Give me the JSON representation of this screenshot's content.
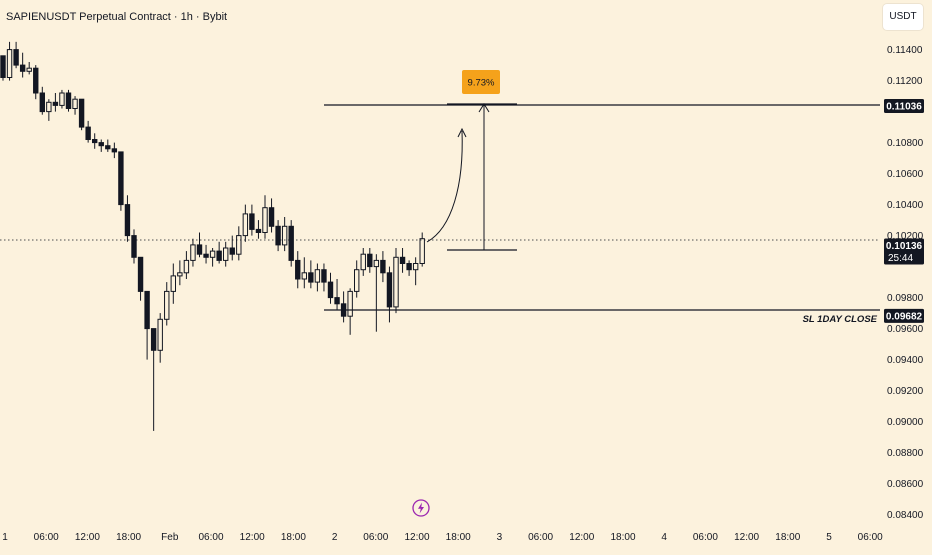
{
  "header": {
    "title": "SAPIENUSDT Perpetual Contract · 1h · Bybit",
    "currency": "USDT"
  },
  "colors": {
    "background": "#fcf2dd",
    "candle": "#131722",
    "percent_badge": "#f5a21b",
    "price_tag": "#131722",
    "text": "#131722"
  },
  "overlay": {
    "bolt_icon": "lightning-icon",
    "percent_label": "9.73%",
    "sl_label": "SL 1DAY CLOSE",
    "countdown": "25:44"
  },
  "chart_data": {
    "type": "candlestick",
    "title": "",
    "ylim": [
      0.0832,
      0.1152
    ],
    "yticks": [
      {
        "value": 0.114,
        "label": "0.11400"
      },
      {
        "value": 0.112,
        "label": "0.11200"
      },
      {
        "value": 0.108,
        "label": "0.10800"
      },
      {
        "value": 0.106,
        "label": "0.10600"
      },
      {
        "value": 0.104,
        "label": "0.10400"
      },
      {
        "value": 0.102,
        "label": "0.10200"
      },
      {
        "value": 0.098,
        "label": "0.09800"
      },
      {
        "value": 0.096,
        "label": "0.09600"
      },
      {
        "value": 0.094,
        "label": "0.09400"
      },
      {
        "value": 0.092,
        "label": "0.09200"
      },
      {
        "value": 0.09,
        "label": "0.09000"
      },
      {
        "value": 0.088,
        "label": "0.08800"
      },
      {
        "value": 0.086,
        "label": "0.08600"
      },
      {
        "value": 0.084,
        "label": "0.08400"
      }
    ],
    "price_tags": [
      {
        "value": 0.11036,
        "label": "0.11036",
        "role": "target"
      },
      {
        "value": 0.10136,
        "label": "0.10136",
        "role": "current"
      },
      {
        "value": 0.09682,
        "label": "0.09682",
        "role": "stop"
      }
    ],
    "xticks": [
      "1",
      "06:00",
      "12:00",
      "18:00",
      "Feb",
      "06:00",
      "12:00",
      "18:00",
      "2",
      "06:00",
      "12:00",
      "18:00",
      "3",
      "06:00",
      "12:00",
      "18:00",
      "4",
      "06:00",
      "12:00",
      "18:00",
      "5",
      "06:00"
    ],
    "candles": [
      [
        0.1136,
        0.1136,
        0.112,
        0.1122
      ],
      [
        0.1122,
        0.1145,
        0.112,
        0.114
      ],
      [
        0.114,
        0.1145,
        0.1128,
        0.113
      ],
      [
        0.113,
        0.1138,
        0.1122,
        0.1126
      ],
      [
        0.1126,
        0.1132,
        0.1124,
        0.1128
      ],
      [
        0.1128,
        0.113,
        0.1108,
        0.1112
      ],
      [
        0.1112,
        0.1116,
        0.1098,
        0.11
      ],
      [
        0.11,
        0.1108,
        0.1094,
        0.1106
      ],
      [
        0.1106,
        0.1112,
        0.11,
        0.1104
      ],
      [
        0.1104,
        0.1114,
        0.1102,
        0.1112
      ],
      [
        0.1112,
        0.1114,
        0.11,
        0.1102
      ],
      [
        0.1102,
        0.111,
        0.1098,
        0.1108
      ],
      [
        0.1108,
        0.1108,
        0.1088,
        0.109
      ],
      [
        0.109,
        0.1094,
        0.108,
        0.1082
      ],
      [
        0.1082,
        0.1086,
        0.1076,
        0.108
      ],
      [
        0.108,
        0.1082,
        0.1074,
        0.1078
      ],
      [
        0.1078,
        0.1082,
        0.1074,
        0.1076
      ],
      [
        0.1076,
        0.108,
        0.107,
        0.1074
      ],
      [
        0.1074,
        0.1074,
        0.1036,
        0.104
      ],
      [
        0.104,
        0.1046,
        0.1016,
        0.102
      ],
      [
        0.102,
        0.1024,
        0.1002,
        0.1006
      ],
      [
        0.1006,
        0.1006,
        0.0978,
        0.0984
      ],
      [
        0.0984,
        0.0984,
        0.094,
        0.096
      ],
      [
        0.096,
        0.096,
        0.0894,
        0.0946
      ],
      [
        0.0946,
        0.097,
        0.0938,
        0.0966
      ],
      [
        0.0966,
        0.099,
        0.0962,
        0.0984
      ],
      [
        0.0984,
        0.1002,
        0.0976,
        0.0994
      ],
      [
        0.0994,
        0.1004,
        0.0988,
        0.0996
      ],
      [
        0.0996,
        0.101,
        0.0992,
        0.1004
      ],
      [
        0.1004,
        0.1018,
        0.1,
        0.1014
      ],
      [
        0.1014,
        0.1022,
        0.1006,
        0.1008
      ],
      [
        0.1008,
        0.1014,
        0.1002,
        0.1006
      ],
      [
        0.1006,
        0.1012,
        0.1,
        0.101
      ],
      [
        0.101,
        0.1016,
        0.1002,
        0.1004
      ],
      [
        0.1004,
        0.1016,
        0.1,
        0.1012
      ],
      [
        0.1012,
        0.102,
        0.1004,
        0.1008
      ],
      [
        0.1008,
        0.1026,
        0.1004,
        0.102
      ],
      [
        0.102,
        0.104,
        0.1016,
        0.1034
      ],
      [
        0.1034,
        0.104,
        0.102,
        0.1024
      ],
      [
        0.1024,
        0.103,
        0.1018,
        0.1022
      ],
      [
        0.1022,
        0.1046,
        0.1018,
        0.1038
      ],
      [
        0.1038,
        0.1044,
        0.1022,
        0.1026
      ],
      [
        0.1026,
        0.103,
        0.101,
        0.1014
      ],
      [
        0.1014,
        0.1032,
        0.101,
        0.1026
      ],
      [
        0.1026,
        0.103,
        0.1,
        0.1004
      ],
      [
        0.1004,
        0.101,
        0.0986,
        0.0992
      ],
      [
        0.0992,
        0.1006,
        0.0986,
        0.0996
      ],
      [
        0.0996,
        0.1004,
        0.0986,
        0.099
      ],
      [
        0.099,
        0.1002,
        0.0984,
        0.0998
      ],
      [
        0.0998,
        0.1002,
        0.0984,
        0.099
      ],
      [
        0.099,
        0.0996,
        0.0976,
        0.098
      ],
      [
        0.098,
        0.0992,
        0.0972,
        0.0976
      ],
      [
        0.0976,
        0.0984,
        0.0964,
        0.0968
      ],
      [
        0.0968,
        0.0986,
        0.0956,
        0.0984
      ],
      [
        0.0984,
        0.1004,
        0.098,
        0.0998
      ],
      [
        0.0998,
        0.1012,
        0.0994,
        0.1008
      ],
      [
        0.1008,
        0.1012,
        0.0996,
        0.1
      ],
      [
        0.1,
        0.1008,
        0.0958,
        0.1004
      ],
      [
        0.1004,
        0.101,
        0.099,
        0.0996
      ],
      [
        0.0996,
        0.1,
        0.0964,
        0.0974
      ],
      [
        0.0974,
        0.1012,
        0.097,
        0.1006
      ],
      [
        0.1006,
        0.1012,
        0.0996,
        0.1002
      ],
      [
        0.1002,
        0.1004,
        0.0994,
        0.0998
      ],
      [
        0.0998,
        0.1006,
        0.0988,
        0.1002
      ],
      [
        0.1002,
        0.1022,
        0.1,
        0.1018
      ]
    ],
    "grid": false,
    "legend": "none"
  }
}
